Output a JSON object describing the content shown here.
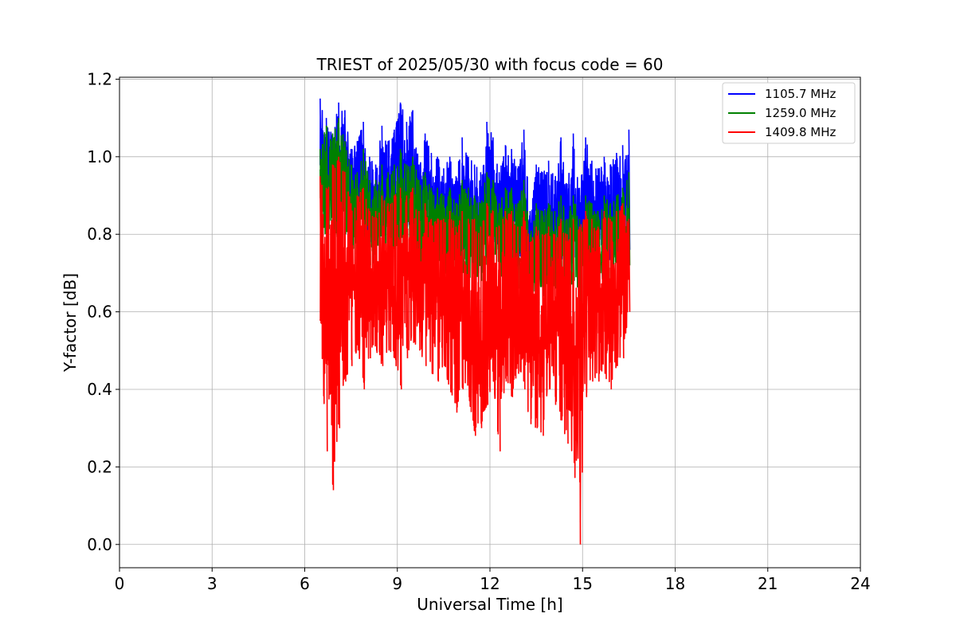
{
  "chart_data": {
    "type": "line",
    "title": "TRIEST of 2025/05/30 with focus code = 60",
    "xlabel": "Universal Time [h]",
    "ylabel": "Y-factor [dB]",
    "xlim": [
      0,
      24
    ],
    "ylim": [
      -0.06,
      1.205
    ],
    "xticks": [
      0,
      3,
      6,
      9,
      12,
      15,
      18,
      21,
      24
    ],
    "yticks": [
      0.0,
      0.2,
      0.4,
      0.6,
      0.8,
      1.0,
      1.2
    ],
    "xtick_labels": [
      "0",
      "3",
      "6",
      "9",
      "12",
      "15",
      "18",
      "21",
      "24"
    ],
    "ytick_labels": [
      "0.0",
      "0.2",
      "0.4",
      "0.6",
      "0.8",
      "1.0",
      "1.2"
    ],
    "grid": true,
    "legend_position": "top-right",
    "series": [
      {
        "name": "1105.7 MHz",
        "color": "#0000ff",
        "x": [
          6.5,
          6.7,
          6.9,
          7.1,
          7.3,
          7.5,
          7.7,
          7.9,
          8.1,
          8.3,
          8.5,
          8.7,
          8.9,
          9.1,
          9.3,
          9.5,
          9.7,
          9.9,
          10.1,
          10.3,
          10.5,
          10.7,
          10.9,
          11.1,
          11.3,
          11.5,
          11.7,
          11.9,
          12.1,
          12.3,
          12.5,
          12.7,
          12.9,
          13.1,
          13.3,
          13.5,
          13.7,
          13.9,
          14.1,
          14.3,
          14.5,
          14.7,
          14.9,
          15.1,
          15.3,
          15.5,
          15.7,
          15.9,
          16.1,
          16.3,
          16.5
        ],
        "y_high": [
          1.15,
          1.1,
          1.06,
          1.14,
          1.12,
          1.02,
          1.04,
          1.09,
          1.0,
          0.98,
          1.08,
          1.04,
          1.07,
          1.14,
          1.09,
          1.12,
          0.98,
          1.06,
          1.01,
          1.0,
          0.97,
          1.0,
          0.95,
          1.05,
          1.0,
          0.98,
          0.96,
          1.09,
          1.05,
          0.96,
          1.03,
          1.02,
          0.97,
          1.07,
          0.86,
          0.98,
          0.96,
          0.99,
          0.94,
          1.05,
          0.93,
          1.06,
          0.92,
          1.05,
          0.99,
          0.97,
          1.0,
          0.98,
          1.01,
          1.03,
          1.07
        ],
        "y_low": [
          0.88,
          0.86,
          0.88,
          0.84,
          0.86,
          0.82,
          0.8,
          0.84,
          0.78,
          0.78,
          0.8,
          0.82,
          0.84,
          0.8,
          0.82,
          0.78,
          0.76,
          0.8,
          0.76,
          0.76,
          0.74,
          0.76,
          0.74,
          0.76,
          0.74,
          0.76,
          0.74,
          0.8,
          0.78,
          0.74,
          0.76,
          0.76,
          0.72,
          0.76,
          0.66,
          0.72,
          0.7,
          0.74,
          0.72,
          0.74,
          0.7,
          0.74,
          0.68,
          0.72,
          0.72,
          0.72,
          0.74,
          0.72,
          0.74,
          0.76,
          0.76
        ]
      },
      {
        "name": "1259.0 MHz",
        "color": "#008000",
        "x": [
          6.5,
          6.7,
          6.9,
          7.1,
          7.3,
          7.5,
          7.7,
          7.9,
          8.1,
          8.3,
          8.5,
          8.7,
          8.9,
          9.1,
          9.3,
          9.5,
          9.7,
          9.9,
          10.1,
          10.3,
          10.5,
          10.7,
          10.9,
          11.1,
          11.3,
          11.5,
          11.7,
          11.9,
          12.1,
          12.3,
          12.5,
          12.7,
          12.9,
          13.1,
          13.3,
          13.5,
          13.7,
          13.9,
          14.1,
          14.3,
          14.5,
          14.7,
          14.9,
          15.1,
          15.3,
          15.5,
          15.7,
          15.9,
          16.1,
          16.3,
          16.5
        ],
        "y_high": [
          1.02,
          1.08,
          1.06,
          1.1,
          1.04,
          0.98,
          0.96,
          1.02,
          0.94,
          0.94,
          0.98,
          0.96,
          0.98,
          1.02,
          0.98,
          1.0,
          0.94,
          0.96,
          0.92,
          0.92,
          0.9,
          0.92,
          0.88,
          0.94,
          0.92,
          0.9,
          0.88,
          0.96,
          0.94,
          0.88,
          0.92,
          0.92,
          0.88,
          0.94,
          0.8,
          0.88,
          0.86,
          0.88,
          0.86,
          0.9,
          0.84,
          0.9,
          0.84,
          0.9,
          0.88,
          0.86,
          0.9,
          0.88,
          0.9,
          0.92,
          0.96
        ],
        "y_low": [
          0.82,
          0.78,
          0.8,
          0.78,
          0.8,
          0.76,
          0.74,
          0.78,
          0.72,
          0.72,
          0.74,
          0.74,
          0.76,
          0.74,
          0.76,
          0.72,
          0.7,
          0.74,
          0.7,
          0.7,
          0.68,
          0.7,
          0.68,
          0.7,
          0.68,
          0.7,
          0.68,
          0.72,
          0.72,
          0.68,
          0.7,
          0.7,
          0.66,
          0.7,
          0.62,
          0.66,
          0.64,
          0.68,
          0.66,
          0.68,
          0.64,
          0.68,
          0.62,
          0.66,
          0.66,
          0.66,
          0.68,
          0.66,
          0.68,
          0.7,
          0.72
        ]
      },
      {
        "name": "1409.8 MHz",
        "color": "#ff0000",
        "x": [
          6.5,
          6.7,
          6.9,
          7.1,
          7.3,
          7.5,
          7.7,
          7.9,
          8.1,
          8.3,
          8.5,
          8.7,
          8.9,
          9.1,
          9.3,
          9.5,
          9.7,
          9.9,
          10.1,
          10.3,
          10.5,
          10.7,
          10.9,
          11.1,
          11.3,
          11.5,
          11.7,
          11.9,
          12.1,
          12.3,
          12.5,
          12.7,
          12.9,
          13.1,
          13.3,
          13.5,
          13.7,
          13.9,
          14.1,
          14.3,
          14.5,
          14.7,
          14.9,
          15.1,
          15.3,
          15.5,
          15.7,
          15.9,
          16.1,
          16.3,
          16.5
        ],
        "y_high": [
          0.95,
          0.92,
          0.98,
          1.0,
          0.96,
          0.88,
          0.9,
          0.92,
          0.86,
          0.86,
          0.9,
          0.88,
          0.9,
          0.92,
          0.9,
          0.92,
          0.86,
          0.88,
          0.84,
          0.84,
          0.84,
          0.86,
          0.82,
          0.86,
          0.84,
          0.84,
          0.82,
          0.88,
          0.86,
          0.82,
          0.86,
          0.86,
          0.82,
          0.86,
          0.78,
          0.82,
          0.8,
          0.82,
          0.8,
          0.84,
          0.8,
          0.84,
          0.82,
          0.86,
          0.84,
          0.82,
          0.86,
          0.84,
          0.86,
          0.88,
          0.84
        ],
        "y_low": [
          0.57,
          0.24,
          0.14,
          0.3,
          0.42,
          0.46,
          0.5,
          0.4,
          0.48,
          0.5,
          0.46,
          0.5,
          0.48,
          0.4,
          0.48,
          0.52,
          0.5,
          0.46,
          0.44,
          0.42,
          0.46,
          0.4,
          0.34,
          0.4,
          0.38,
          0.28,
          0.3,
          0.36,
          0.42,
          0.24,
          0.42,
          0.38,
          0.44,
          0.4,
          0.31,
          0.3,
          0.28,
          0.4,
          0.36,
          0.32,
          0.26,
          0.21,
          0.0,
          0.38,
          0.42,
          0.42,
          0.44,
          0.4,
          0.46,
          0.48,
          0.6
        ]
      }
    ]
  }
}
